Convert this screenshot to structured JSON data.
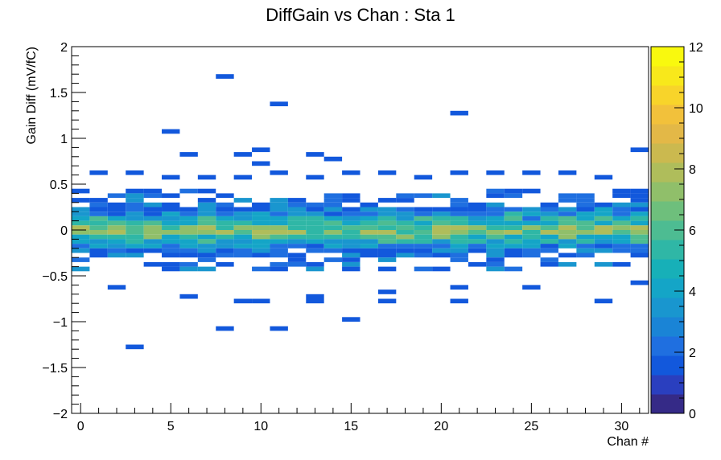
{
  "chart_data": {
    "type": "heatmap",
    "title": "DiffGain vs Chan : Sta 1",
    "xlabel": "Chan #",
    "ylabel": "Gain Diff (mV/fC)",
    "xlim": [
      -0.5,
      31.5
    ],
    "ylim": [
      -2,
      2
    ],
    "x_ticks": [
      0,
      5,
      10,
      15,
      20,
      25,
      30
    ],
    "y_ticks": [
      -2,
      -1.5,
      -1,
      -0.5,
      0,
      0.5,
      1,
      1.5,
      2
    ],
    "z_range": [
      0,
      12
    ],
    "z_ticks": [
      0,
      2,
      4,
      6,
      8,
      10,
      12
    ],
    "bin_height": 0.05,
    "grid": false,
    "colorbar": "right",
    "colormap": [
      "#352a87",
      "#2a3fbf",
      "#1258dc",
      "#1f6fe0",
      "#1a84d6",
      "#1996cf",
      "#14a5c7",
      "#17b0b8",
      "#2fb7a6",
      "#4dbc92",
      "#6ebf7c",
      "#90bf6a",
      "#afbd5b",
      "#cbb94f",
      "#e3b847",
      "#f2c13b",
      "#f8d42a",
      "#f8e81b",
      "#f9f90e"
    ],
    "outliers": [
      {
        "x": 8,
        "y": 1.675,
        "z": 1
      },
      {
        "x": 11,
        "y": 1.375,
        "z": 1
      },
      {
        "x": 21,
        "y": 1.275,
        "z": 1
      },
      {
        "x": 5,
        "y": 1.075,
        "z": 1
      },
      {
        "x": 6,
        "y": 0.825,
        "z": 1
      },
      {
        "x": 9,
        "y": 0.825,
        "z": 1
      },
      {
        "x": 10,
        "y": 0.875,
        "z": 1
      },
      {
        "x": 10,
        "y": 0.725,
        "z": 1
      },
      {
        "x": 13,
        "y": 0.825,
        "z": 1
      },
      {
        "x": 14,
        "y": 0.775,
        "z": 1
      },
      {
        "x": 31,
        "y": 0.875,
        "z": 1
      },
      {
        "x": 1,
        "y": 0.625,
        "z": 1
      },
      {
        "x": 3,
        "y": 0.625,
        "z": 1
      },
      {
        "x": 5,
        "y": 0.575,
        "z": 1
      },
      {
        "x": 7,
        "y": 0.575,
        "z": 1
      },
      {
        "x": 9,
        "y": 0.575,
        "z": 1
      },
      {
        "x": 11,
        "y": 0.625,
        "z": 1
      },
      {
        "x": 13,
        "y": 0.575,
        "z": 1
      },
      {
        "x": 15,
        "y": 0.625,
        "z": 1
      },
      {
        "x": 17,
        "y": 0.625,
        "z": 1
      },
      {
        "x": 19,
        "y": 0.575,
        "z": 1
      },
      {
        "x": 21,
        "y": 0.625,
        "z": 1
      },
      {
        "x": 23,
        "y": 0.625,
        "z": 1
      },
      {
        "x": 25,
        "y": 0.625,
        "z": 1
      },
      {
        "x": 27,
        "y": 0.625,
        "z": 1
      },
      {
        "x": 29,
        "y": 0.575,
        "z": 1
      },
      {
        "x": 2,
        "y": -0.625,
        "z": 1
      },
      {
        "x": 6,
        "y": -0.725,
        "z": 1
      },
      {
        "x": 9,
        "y": -0.775,
        "z": 1
      },
      {
        "x": 10,
        "y": -0.775,
        "z": 1
      },
      {
        "x": 13,
        "y": -0.725,
        "z": 1
      },
      {
        "x": 13,
        "y": -0.775,
        "z": 1
      },
      {
        "x": 17,
        "y": -0.675,
        "z": 1
      },
      {
        "x": 17,
        "y": -0.775,
        "z": 1
      },
      {
        "x": 21,
        "y": -0.625,
        "z": 1
      },
      {
        "x": 21,
        "y": -0.775,
        "z": 1
      },
      {
        "x": 25,
        "y": -0.625,
        "z": 1
      },
      {
        "x": 29,
        "y": -0.775,
        "z": 1
      },
      {
        "x": 31,
        "y": -0.575,
        "z": 1
      },
      {
        "x": 15,
        "y": -0.975,
        "z": 1
      },
      {
        "x": 8,
        "y": -1.075,
        "z": 1
      },
      {
        "x": 11,
        "y": -1.075,
        "z": 1
      },
      {
        "x": 3,
        "y": -1.275,
        "z": 1
      }
    ]
  }
}
